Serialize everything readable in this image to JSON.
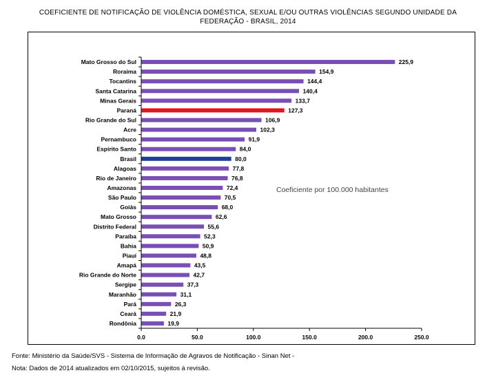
{
  "title_line1": "COEFICIENTE DE NOTIFICAÇÃO DE VIOLÊNCIA DOMÉSTICA, SEXUAL E/OU OUTRAS VIOLÊNCIAS SEGUNDO UNIDADE DA",
  "title_line2": "FEDERAÇÃO - BRASIL, 2014",
  "source": "Fonte: Ministério da Saúde/SVS - Sistema de Informação de Agravos de Notificação - Sinan Net -",
  "note": "Nota:  Dados de 2014 atualizados em 02/10/2015, sujeitos à revisão.",
  "colors": {
    "default": "#7a4fb5",
    "highlight_red": "#e0171f",
    "highlight_blue": "#1f3d99"
  },
  "chart_data": {
    "type": "bar",
    "orientation": "horizontal",
    "annotation": "Coeficiente por 100.000 habitantes",
    "categories": [
      "Mato Grosso do Sul",
      "Roraima",
      "Tocantins",
      "Santa Catarina",
      "Minas Gerais",
      "Paraná",
      "Rio Grande do Sul",
      "Acre",
      "Pernambuco",
      "Espírito Santo",
      "Brasil",
      "Alagoas",
      "Rio de Janeiro",
      "Amazonas",
      "São Paulo",
      "Goiás",
      "Mato Grosso",
      "Distrito Federal",
      "Paraíba",
      "Bahia",
      "Piauí",
      "Amapá",
      "Rio Grande do Norte",
      "Sergipe",
      "Maranhão",
      "Pará",
      "Ceará",
      "Rondônia"
    ],
    "values": [
      225.9,
      154.9,
      144.4,
      140.4,
      133.7,
      127.3,
      106.9,
      102.3,
      91.9,
      84.0,
      80.0,
      77.8,
      76.8,
      72.4,
      70.5,
      68.0,
      62.6,
      55.6,
      52.3,
      50.9,
      48.8,
      43.5,
      42.7,
      37.3,
      31.1,
      26.3,
      21.9,
      19.9
    ],
    "value_labels": [
      "225,9",
      "154,9",
      "144,4",
      "140,4",
      "133,7",
      "127,3",
      "106,9",
      "102,3",
      "91,9",
      "84,0",
      "80,0",
      "77,8",
      "76,8",
      "72,4",
      "70,5",
      "68,0",
      "62,6",
      "55,6",
      "52,3",
      "50,9",
      "48,8",
      "43,5",
      "42,7",
      "37,3",
      "31,1",
      "26,3",
      "21,9",
      "19,9"
    ],
    "highlight": {
      "Paraná": "highlight_red",
      "Brasil": "highlight_blue"
    },
    "xlim": [
      0,
      250
    ],
    "xticks": [
      0,
      50,
      100,
      150,
      200,
      250
    ],
    "xtick_labels": [
      "0.0",
      "50.0",
      "100.0",
      "150.0",
      "200.0",
      "250.0"
    ],
    "grid": false,
    "xlabel": "",
    "ylabel": ""
  }
}
